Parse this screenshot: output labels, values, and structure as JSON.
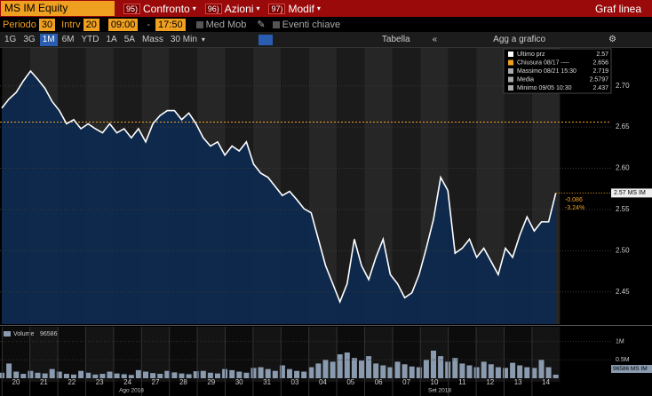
{
  "toolbar": {
    "security": "MS IM Equity",
    "menus": [
      {
        "code": "95)",
        "label": "Confronto"
      },
      {
        "code": "96)",
        "label": "Azioni"
      },
      {
        "code": "97)",
        "label": "Modif"
      }
    ],
    "view": "Graf linea"
  },
  "settings": {
    "period_label": "Periodo",
    "period": 30,
    "interval_label": "Intrv",
    "interval": 20,
    "start": "09:00",
    "sep": "-",
    "end": "17:50",
    "moving_avg": "Med Mob",
    "key_events": "Eventi chiave"
  },
  "ranges": [
    "1G",
    "3G",
    "1M",
    "6M",
    "YTD",
    "1A",
    "5A",
    "Mass"
  ],
  "active_range": 2,
  "frequency": "30 Min",
  "table": "Tabella",
  "add": "Agg a grafico",
  "chart_data": {
    "type": "line",
    "color": "#ffffff",
    "legend": [
      {
        "label": "Ultimo prz",
        "value": 2.57,
        "color": "#ffffff"
      },
      {
        "label": "Chiusura 08/17 ----",
        "value": 2.656,
        "color": "#f0a020"
      },
      {
        "label": "Massimo 08/21 15:30",
        "value": 2.719,
        "color": "#aaaaaa"
      },
      {
        "label": "Media",
        "value": 2.5797,
        "color": "#aaaaaa"
      },
      {
        "label": "Minimo 09/05 10:30",
        "value": 2.437,
        "color": "#aaaaaa"
      }
    ],
    "x_labels": [
      "20",
      "21",
      "22",
      "23",
      "24",
      "27",
      "28",
      "29",
      "30",
      "31",
      "03",
      "04",
      "05",
      "06",
      "07",
      "10",
      "11",
      "12",
      "13",
      "14"
    ],
    "month_labels": [
      "Ago 2018",
      "Set 2018"
    ],
    "values": [
      2.673,
      2.684,
      2.692,
      2.706,
      2.718,
      2.708,
      2.697,
      2.681,
      2.67,
      2.654,
      2.659,
      2.648,
      2.654,
      2.648,
      2.643,
      2.654,
      2.643,
      2.648,
      2.637,
      2.648,
      2.632,
      2.654,
      2.664,
      2.67,
      2.67,
      2.659,
      2.667,
      2.654,
      2.637,
      2.627,
      2.632,
      2.616,
      2.627,
      2.621,
      2.632,
      2.605,
      2.594,
      2.589,
      2.578,
      2.567,
      2.572,
      2.562,
      2.551,
      2.546,
      2.514,
      2.482,
      2.46,
      2.438,
      2.46,
      2.514,
      2.482,
      2.465,
      2.492,
      2.514,
      2.471,
      2.46,
      2.443,
      2.449,
      2.471,
      2.503,
      2.538,
      2.589,
      2.573,
      2.497,
      2.503,
      2.514,
      2.492,
      2.503,
      2.487,
      2.471,
      2.503,
      2.492,
      2.519,
      2.541,
      2.524,
      2.535,
      2.535,
      2.57
    ],
    "ylim": [
      2.411,
      2.746
    ],
    "yticks": [
      {
        "value": 2.7,
        "label": "2.70"
      },
      2.65,
      {
        "value": 2.6,
        "label": "2.60"
      },
      2.55,
      {
        "value": 2.5,
        "label": "2.50"
      },
      2.45
    ],
    "last_tag": "2.57 MS IM",
    "change": -0.086,
    "change_pct": "-3.24%",
    "volume": {
      "name": "Volume",
      "color": "#8a9bb0",
      "axis": "y2",
      "values": [
        150000,
        400000,
        180000,
        120000,
        200000,
        150000,
        130000,
        250000,
        180000,
        120000,
        100000,
        200000,
        150000,
        100000,
        120000,
        180000,
        130000,
        110000,
        90000,
        220000,
        180000,
        140000,
        120000,
        200000,
        160000,
        130000,
        110000,
        190000,
        200000,
        150000,
        130000,
        250000,
        220000,
        180000,
        150000,
        280000,
        300000,
        250000,
        200000,
        350000,
        250000,
        200000,
        180000,
        300000,
        400000,
        500000,
        450000,
        650000,
        700000,
        550000,
        480000,
        600000,
        400000,
        350000,
        300000,
        450000,
        380000,
        320000,
        300000,
        500000,
        750000,
        600000,
        450000,
        550000,
        400000,
        350000,
        300000,
        450000,
        380000,
        300000,
        280000,
        420000,
        350000,
        300000,
        280000,
        500000,
        300000,
        96586
      ]
    },
    "volume_tag": "96586 MS IM",
    "y2lim": [
      0,
      1400000
    ],
    "y2ticks": [
      {
        "value": 1000000,
        "label": "1M"
      },
      {
        "value": 500000,
        "label": "0.5M"
      }
    ],
    "grid": true
  }
}
